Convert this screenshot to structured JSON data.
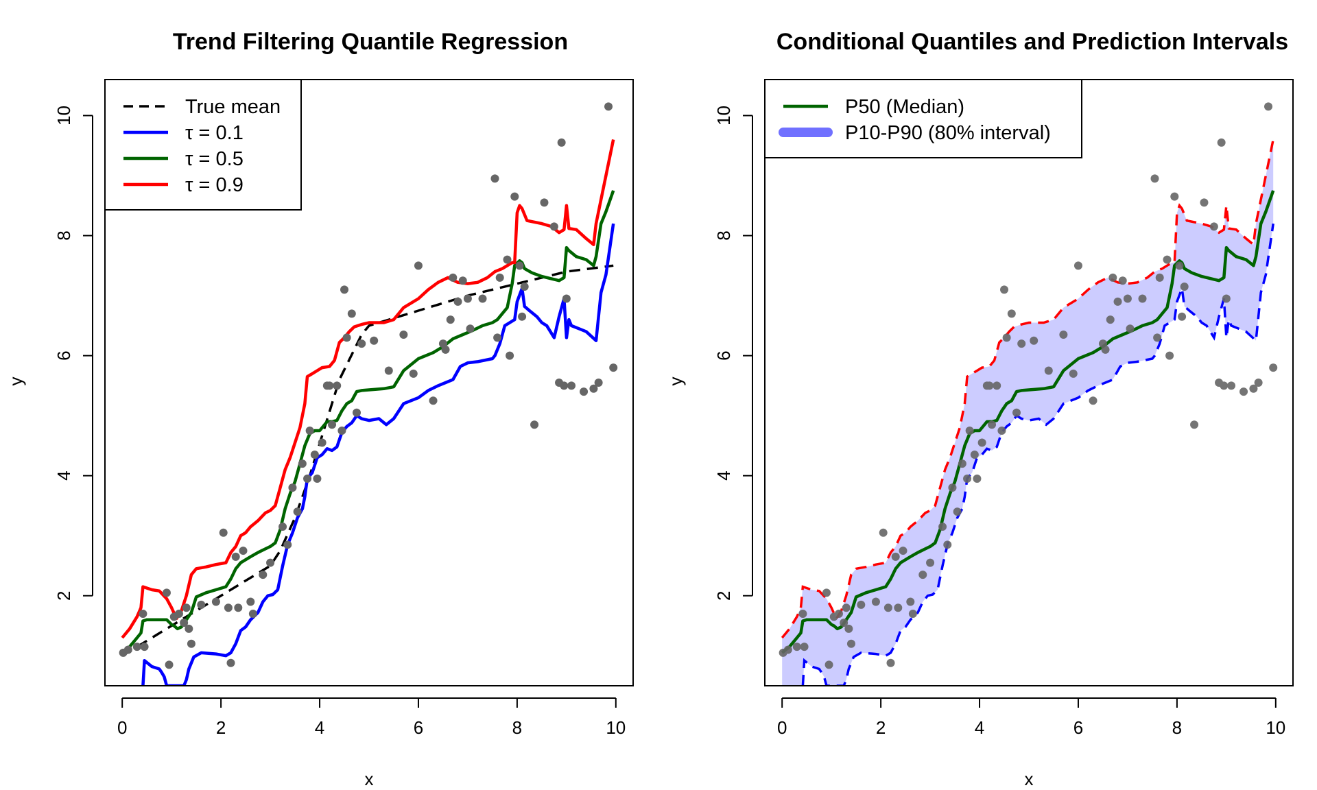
{
  "chart_data": [
    {
      "type": "line",
      "title": "Trend Filtering Quantile Regression",
      "xlabel": "x",
      "ylabel": "y",
      "xlim": [
        -0.35,
        10.35
      ],
      "ylim": [
        0.5,
        10.6
      ],
      "xticks": [
        "0",
        "2",
        "4",
        "6",
        "8",
        "10"
      ],
      "yticks": [
        "2",
        "4",
        "6",
        "8",
        "10"
      ],
      "legend_position": "top-left",
      "series": [
        {
          "name": "True mean",
          "color": "#000000",
          "style": "dashed",
          "x": [
            0,
            0.5,
            1,
            1.5,
            2,
            2.5,
            3,
            3.2,
            3.5,
            3.8,
            4.1,
            4.4,
            4.7,
            4.85,
            5,
            6,
            7,
            8,
            9,
            9.95
          ],
          "y": [
            1,
            1.25,
            1.5,
            1.75,
            2,
            2.25,
            2.5,
            2.75,
            3.3,
            4.0,
            4.8,
            5.6,
            6.1,
            6.35,
            6.5,
            6.75,
            7.0,
            7.2,
            7.4,
            7.5
          ]
        },
        {
          "name": "τ = 0.1",
          "color": "#0000ff",
          "style": "solid",
          "x": [
            0.42,
            0.45,
            0.6,
            0.75,
            0.8,
            0.85,
            0.9,
            1.0,
            1.05,
            1.25,
            1.3,
            1.35,
            1.45,
            1.6,
            1.9,
            2.1,
            2.2,
            2.3,
            2.4,
            2.5,
            2.6,
            2.75,
            2.85,
            2.95,
            3.05,
            3.15,
            3.25,
            3.35,
            3.45,
            3.55,
            3.65,
            3.7,
            3.75,
            3.85,
            3.95,
            4.05,
            4.15,
            4.25,
            4.35,
            4.45,
            4.55,
            4.65,
            4.75,
            4.85,
            5.0,
            5.2,
            5.35,
            5.5,
            5.7,
            6.0,
            6.2,
            6.4,
            6.55,
            6.7,
            6.85,
            7.0,
            7.2,
            7.5,
            7.55,
            7.65,
            7.75,
            7.85,
            7.95,
            8.0,
            8.1,
            8.15,
            8.25,
            8.4,
            8.5,
            8.6,
            8.75,
            8.85,
            8.95,
            9.0,
            9.05,
            9.1,
            9.25,
            9.4,
            9.6,
            9.7,
            9.8,
            9.95
          ],
          "y": [
            0.5,
            0.92,
            0.82,
            0.78,
            0.72,
            0.65,
            0.5,
            0.5,
            0.5,
            0.5,
            0.6,
            0.78,
            0.98,
            1.05,
            1.03,
            1.0,
            1.05,
            1.2,
            1.42,
            1.48,
            1.6,
            1.72,
            1.9,
            2.0,
            2.02,
            2.1,
            2.5,
            2.85,
            3.05,
            3.3,
            3.45,
            3.65,
            3.95,
            4.05,
            4.3,
            4.35,
            4.45,
            4.42,
            4.48,
            4.72,
            4.82,
            4.88,
            5.0,
            4.95,
            4.92,
            4.95,
            4.85,
            4.95,
            5.2,
            5.3,
            5.42,
            5.5,
            5.55,
            5.6,
            5.82,
            5.88,
            5.9,
            5.95,
            6.0,
            6.2,
            6.5,
            6.55,
            6.6,
            6.9,
            7.12,
            6.82,
            6.75,
            6.65,
            6.55,
            6.5,
            6.3,
            6.65,
            6.95,
            6.3,
            6.6,
            6.5,
            6.45,
            6.4,
            6.25,
            7.05,
            7.35,
            8.2
          ]
        },
        {
          "name": "τ = 0.5",
          "color": "#006400",
          "style": "solid",
          "x": [
            0,
            0.15,
            0.3,
            0.38,
            0.42,
            0.5,
            0.7,
            0.9,
            1.0,
            1.05,
            1.12,
            1.2,
            1.3,
            1.4,
            1.5,
            1.7,
            1.9,
            2.1,
            2.2,
            2.3,
            2.4,
            2.5,
            2.6,
            2.75,
            2.9,
            3.0,
            3.1,
            3.2,
            3.3,
            3.4,
            3.5,
            3.6,
            3.7,
            3.8,
            3.9,
            4.0,
            4.15,
            4.25,
            4.35,
            4.45,
            4.55,
            4.65,
            4.75,
            4.85,
            5.0,
            5.3,
            5.5,
            5.7,
            6.0,
            6.3,
            6.5,
            6.7,
            6.9,
            7.1,
            7.3,
            7.5,
            7.6,
            7.7,
            7.8,
            7.9,
            7.95,
            8.05,
            8.1,
            8.15,
            8.3,
            8.5,
            8.7,
            8.85,
            8.95,
            9.0,
            9.05,
            9.2,
            9.4,
            9.55,
            9.6,
            9.7,
            9.8,
            9.95
          ],
          "y": [
            1.05,
            1.15,
            1.3,
            1.38,
            1.58,
            1.6,
            1.6,
            1.6,
            1.52,
            1.5,
            1.45,
            1.48,
            1.6,
            1.72,
            1.98,
            2.05,
            2.1,
            2.15,
            2.28,
            2.45,
            2.55,
            2.6,
            2.65,
            2.72,
            2.78,
            2.82,
            2.88,
            3.1,
            3.45,
            3.7,
            3.9,
            4.2,
            4.5,
            4.7,
            4.75,
            4.75,
            4.9,
            4.9,
            4.92,
            5.08,
            5.2,
            5.25,
            5.4,
            5.42,
            5.43,
            5.45,
            5.48,
            5.75,
            5.95,
            6.05,
            6.15,
            6.28,
            6.35,
            6.42,
            6.5,
            6.55,
            6.6,
            6.7,
            6.8,
            7.2,
            7.5,
            7.58,
            7.55,
            7.45,
            7.38,
            7.32,
            7.28,
            7.25,
            7.3,
            7.8,
            7.75,
            7.65,
            7.6,
            7.5,
            7.65,
            8.2,
            8.4,
            8.75
          ]
        },
        {
          "name": "τ = 0.9",
          "color": "#ff0000",
          "style": "solid",
          "x": [
            0,
            0.15,
            0.3,
            0.38,
            0.42,
            0.6,
            0.75,
            0.9,
            1.0,
            1.1,
            1.2,
            1.3,
            1.4,
            1.5,
            1.7,
            1.9,
            2.1,
            2.2,
            2.3,
            2.4,
            2.5,
            2.6,
            2.75,
            2.9,
            3.0,
            3.1,
            3.2,
            3.3,
            3.4,
            3.5,
            3.6,
            3.7,
            3.75,
            3.85,
            3.95,
            4.05,
            4.2,
            4.3,
            4.4,
            4.5,
            4.6,
            4.7,
            4.85,
            5.0,
            5.3,
            5.5,
            5.7,
            6.0,
            6.2,
            6.4,
            6.6,
            6.8,
            7.0,
            7.2,
            7.4,
            7.55,
            7.7,
            7.8,
            7.9,
            7.95,
            8.0,
            8.05,
            8.1,
            8.2,
            8.5,
            8.7,
            8.85,
            8.95,
            9.0,
            9.05,
            9.2,
            9.4,
            9.55,
            9.6,
            9.7,
            9.8,
            9.95
          ],
          "y": [
            1.3,
            1.45,
            1.65,
            1.8,
            2.15,
            2.1,
            2.08,
            1.95,
            1.8,
            1.62,
            1.75,
            2.0,
            2.35,
            2.45,
            2.48,
            2.52,
            2.55,
            2.72,
            2.82,
            3.0,
            3.05,
            3.15,
            3.25,
            3.38,
            3.42,
            3.5,
            3.8,
            4.1,
            4.3,
            4.55,
            4.8,
            5.2,
            5.65,
            5.7,
            5.75,
            5.8,
            5.82,
            5.92,
            6.22,
            6.3,
            6.4,
            6.48,
            6.52,
            6.55,
            6.55,
            6.6,
            6.8,
            6.95,
            7.1,
            7.22,
            7.3,
            7.22,
            7.2,
            7.22,
            7.3,
            7.4,
            7.45,
            7.5,
            7.55,
            7.55,
            8.38,
            8.5,
            8.45,
            8.25,
            8.2,
            8.15,
            8.05,
            8.1,
            8.5,
            8.12,
            8.1,
            7.95,
            7.85,
            8.2,
            8.6,
            9.0,
            9.6
          ]
        }
      ],
      "points": {
        "color": "#666666",
        "x": [
          0.02,
          0.12,
          0.3,
          0.42,
          0.45,
          0.9,
          0.95,
          1.05,
          1.15,
          1.25,
          1.3,
          1.35,
          1.4,
          1.6,
          1.9,
          2.05,
          2.15,
          2.2,
          2.3,
          2.35,
          2.45,
          2.6,
          2.65,
          2.85,
          3.0,
          3.25,
          3.35,
          3.45,
          3.55,
          3.65,
          3.75,
          3.8,
          3.9,
          3.95,
          4.05,
          4.15,
          4.2,
          4.25,
          4.35,
          4.45,
          4.5,
          4.55,
          4.65,
          4.75,
          4.85,
          5.1,
          5.4,
          5.7,
          5.9,
          6.0,
          6.3,
          6.5,
          6.55,
          6.65,
          6.7,
          6.8,
          6.9,
          7.0,
          7.05,
          7.3,
          7.55,
          7.6,
          7.65,
          7.8,
          7.85,
          7.95,
          8.05,
          8.1,
          8.15,
          8.35,
          8.55,
          8.75,
          8.85,
          8.9,
          8.95,
          9.0,
          9.1,
          9.35,
          9.55,
          9.65,
          9.85,
          9.95
        ],
        "y": [
          1.05,
          1.1,
          1.15,
          1.7,
          1.15,
          2.05,
          0.85,
          1.65,
          1.7,
          1.55,
          1.8,
          1.45,
          1.2,
          1.85,
          1.9,
          3.05,
          1.8,
          0.88,
          2.65,
          1.8,
          2.75,
          1.9,
          1.7,
          2.35,
          2.55,
          3.15,
          2.85,
          3.8,
          3.4,
          4.2,
          3.95,
          4.75,
          4.35,
          3.95,
          4.55,
          5.5,
          5.5,
          4.85,
          5.5,
          4.75,
          7.1,
          6.3,
          6.7,
          5.05,
          6.2,
          6.25,
          5.75,
          6.35,
          5.7,
          7.5,
          5.25,
          6.2,
          6.1,
          6.6,
          7.3,
          6.9,
          7.25,
          6.95,
          6.45,
          6.95,
          8.95,
          6.3,
          7.3,
          7.6,
          6.0,
          8.65,
          7.5,
          6.65,
          7.15,
          4.85,
          8.55,
          8.15,
          5.55,
          9.55,
          5.5,
          6.95,
          5.5,
          5.4,
          5.45,
          5.55,
          10.15,
          5.8
        ]
      }
    },
    {
      "type": "area",
      "title": "Conditional Quantiles and Prediction Intervals",
      "xlabel": "x",
      "ylabel": "y",
      "xlim": [
        -0.35,
        10.35
      ],
      "ylim": [
        0.5,
        10.6
      ],
      "xticks": [
        "0",
        "2",
        "4",
        "6",
        "8",
        "10"
      ],
      "yticks": [
        "2",
        "4",
        "6",
        "8",
        "10"
      ],
      "legend_position": "top-left",
      "series": [
        {
          "name": "P50 (Median)",
          "color": "#006400",
          "style": "solid",
          "ref": "tau_0.5"
        },
        {
          "name": "P10-P90 (80% interval)",
          "color": "#7070ff",
          "fill": "#ccccff",
          "style": "band",
          "lower_ref": "tau_0.1",
          "upper_ref": "tau_0.9"
        }
      ],
      "band_edges": {
        "lower_color": "#0000ff",
        "upper_color": "#ff0000",
        "style": "dashed"
      }
    }
  ]
}
